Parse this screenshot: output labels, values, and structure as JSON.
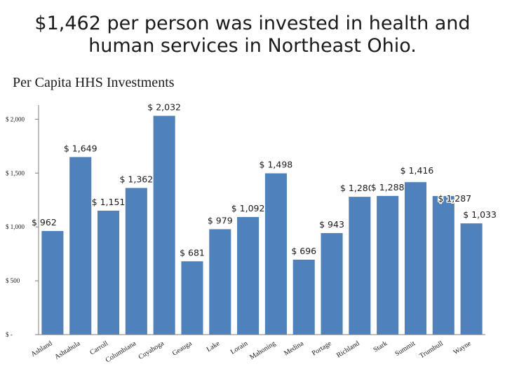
{
  "slide": {
    "title_line1": "$1,462 per person was invested in health and",
    "title_line2": "human services in Northeast Ohio."
  },
  "chart_data": {
    "type": "bar",
    "title": "Per Capita HHS Investments",
    "categories": [
      "Ashland",
      "Ashtabula",
      "Carroll",
      "Columbiana",
      "Cuyahoga",
      "Geauga",
      "Lake",
      "Lorain",
      "Mahoning",
      "Medina",
      "Portage",
      "Richland",
      "Stark",
      "Summit",
      "Trumbull",
      "Wayne"
    ],
    "values": [
      962,
      1649,
      1151,
      1362,
      2032,
      681,
      979,
      1092,
      1498,
      696,
      943,
      1280,
      1288,
      1416,
      1287,
      1033
    ],
    "data_labels": [
      "$ 962",
      "$ 1,649",
      "$ 1,151",
      "$ 1,362",
      "$ 2,032",
      "$ 681",
      "$ 979",
      "$ 1,092",
      "$ 1,498",
      "$ 696",
      "$ 943",
      "$ 1,280",
      "$ 1,288",
      "$ 1,416",
      "$ 1,287",
      "$ 1,033"
    ],
    "yticks": [
      0,
      500,
      1000,
      1500,
      2000
    ],
    "ytick_labels": [
      "$ -",
      "$ 500",
      "$ 1,000",
      "$ 1,500",
      "$ 2,000"
    ],
    "ylim": [
      0,
      2100
    ],
    "grid": false,
    "legend": "none",
    "colors": {
      "bar": "#4f81bd",
      "axis": "#7f7f7f",
      "text": "#1a1a1a"
    }
  }
}
